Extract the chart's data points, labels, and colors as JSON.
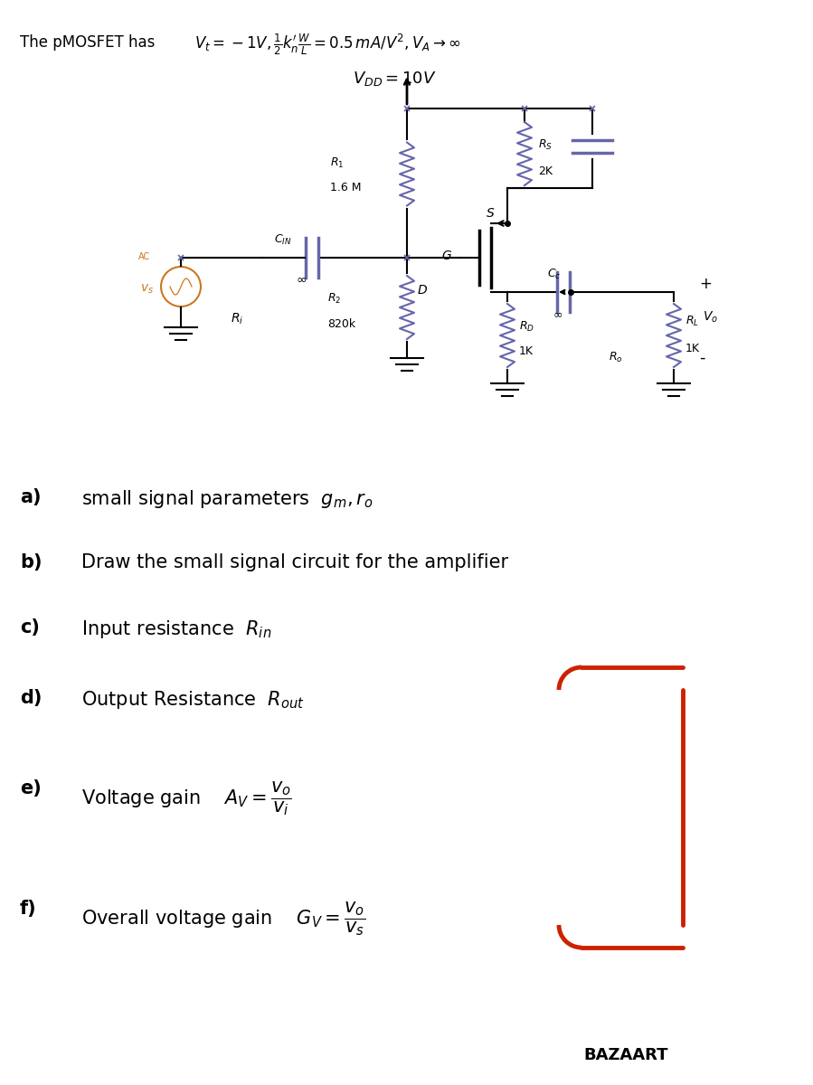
{
  "bg_color": "#ffffff",
  "text_color": "#000000",
  "orange_color": "#cc7722",
  "red_color": "#cc2200",
  "blue_color": "#6666aa",
  "title_text": "The pMOSFET has",
  "params_text": "$V_t=-1V, \\frac{1}{2}k^{\\prime}_n\\frac{W}{L}=0.5\\,mA/V^2, V_A\\rightarrow\\infty$",
  "vdd_label": "$V_{DD}=10V$",
  "bazaart": "BAZAART"
}
